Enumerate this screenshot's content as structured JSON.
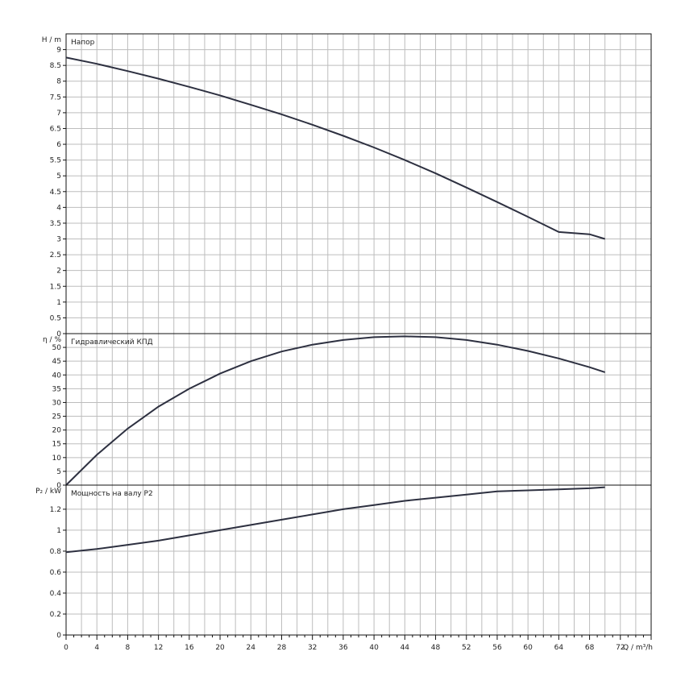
{
  "chart_data": {
    "type": "line",
    "x_axis": {
      "label": "Q / m³/h",
      "range": [
        0,
        76
      ],
      "tick_labels": [
        "0",
        "4",
        "8",
        "12",
        "16",
        "20",
        "24",
        "28",
        "32",
        "36",
        "40",
        "44",
        "48",
        "52",
        "56",
        "60",
        "64",
        "68",
        "72"
      ]
    },
    "panels": [
      {
        "id": "head",
        "title": "Напор",
        "ylabel": "H / m",
        "ylim": [
          0,
          9.5
        ],
        "y_ticks": [
          "0",
          "0.5",
          "1",
          "1.5",
          "2",
          "2.5",
          "3",
          "3.5",
          "4",
          "4.5",
          "5",
          "5.5",
          "6",
          "6.5",
          "7",
          "7.5",
          "8",
          "8.5",
          "9"
        ],
        "series": [
          {
            "x": [
              0,
              4,
              8,
              12,
              16,
              20,
              24,
              28,
              32,
              36,
              40,
              44,
              48,
              52,
              56,
              60,
              64,
              68,
              70
            ],
            "y": [
              8.75,
              8.55,
              8.32,
              8.08,
              7.82,
              7.55,
              7.25,
              6.95,
              6.62,
              6.27,
              5.9,
              5.5,
              5.08,
              4.63,
              4.17,
              3.7,
              3.22,
              3.15,
              3.0
            ]
          }
        ]
      },
      {
        "id": "efficiency",
        "title": "Гидравлический КПД",
        "ylabel": "η / %",
        "ylim": [
          0,
          55
        ],
        "y_ticks": [
          "0",
          "5",
          "10",
          "15",
          "20",
          "25",
          "30",
          "35",
          "40",
          "45",
          "50"
        ],
        "series": [
          {
            "x": [
              0,
              4,
              8,
              12,
              16,
              20,
              24,
              28,
              32,
              36,
              40,
              44,
              48,
              52,
              56,
              60,
              64,
              68,
              70
            ],
            "y": [
              0,
              11,
              20.5,
              28.5,
              35,
              40.5,
              45,
              48.5,
              51,
              52.7,
              53.7,
              54,
              53.7,
              52.7,
              51,
              48.7,
              46,
              42.8,
              41
            ]
          }
        ]
      },
      {
        "id": "power",
        "title": "Мощность на валу P2",
        "ylabel": "P₂ / kW",
        "ylim": [
          0,
          1.43
        ],
        "y_ticks": [
          "0",
          "0.2",
          "0.4",
          "0.6",
          "0.8",
          "1",
          "1.2"
        ],
        "series": [
          {
            "x": [
              0,
              4,
              8,
              12,
              16,
              20,
              24,
              28,
              32,
              36,
              40,
              44,
              48,
              52,
              56,
              60,
              64,
              68,
              70
            ],
            "y": [
              0.79,
              0.82,
              0.86,
              0.9,
              0.95,
              1.0,
              1.05,
              1.1,
              1.15,
              1.2,
              1.24,
              1.28,
              1.31,
              1.34,
              1.37,
              1.38,
              1.39,
              1.4,
              1.41
            ]
          }
        ]
      }
    ]
  }
}
